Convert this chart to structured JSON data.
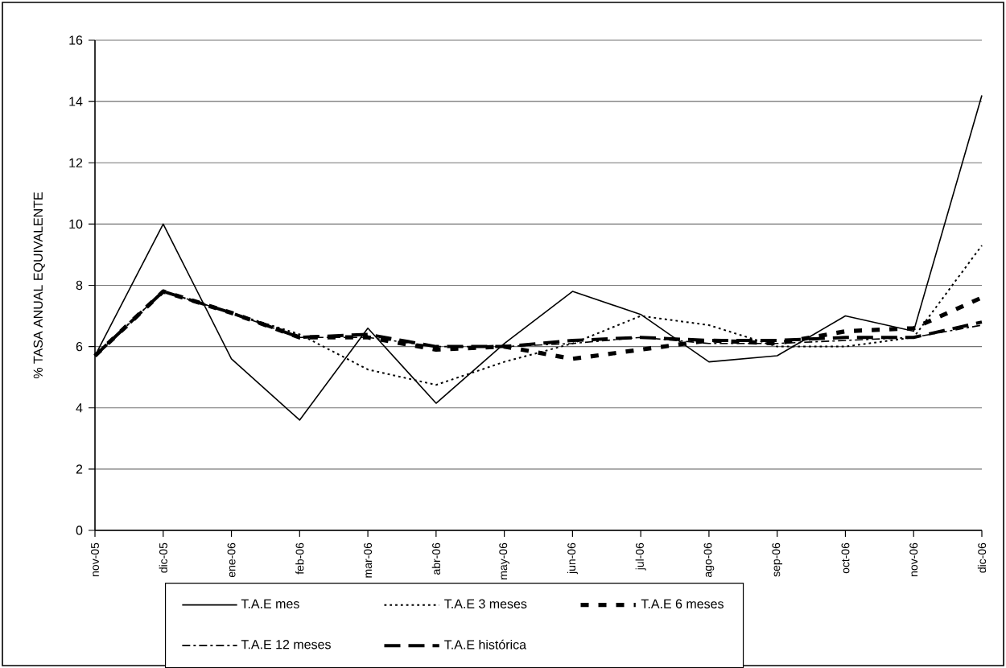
{
  "chart_data": {
    "type": "line",
    "ylabel": "% TASA ANUAL EQUIVALENTE",
    "categories": [
      "nov-05",
      "dic-05",
      "ene-06",
      "feb-06",
      "mar-06",
      "abr-06",
      "may-06",
      "jun-06",
      "jul-06",
      "ago-06",
      "sep-06",
      "oct-06",
      "nov-06",
      "dic-06"
    ],
    "ylim": [
      0,
      16
    ],
    "yticks": [
      0,
      2,
      4,
      6,
      8,
      10,
      12,
      14,
      16
    ],
    "grid": "y",
    "legend": "bottom",
    "marker": "none",
    "series": [
      {
        "name": "T.A.E mes",
        "color": "#000000",
        "line_style": "solid",
        "values": [
          5.7,
          10.0,
          5.6,
          3.6,
          6.6,
          4.15,
          6.1,
          7.8,
          7.05,
          5.5,
          5.7,
          7.0,
          6.5,
          14.2
        ]
      },
      {
        "name": "T.A.E 3 meses",
        "color": "#000000",
        "line_style": "dotted",
        "values": [
          5.7,
          7.8,
          7.1,
          6.4,
          5.25,
          4.75,
          5.5,
          6.1,
          7.0,
          6.7,
          6.0,
          6.0,
          6.3,
          9.3
        ]
      },
      {
        "name": "T.A.E 6 meses",
        "color": "#000000",
        "line_style": "dashed",
        "values": [
          5.7,
          7.8,
          7.1,
          6.3,
          6.3,
          5.9,
          6.0,
          5.6,
          5.9,
          6.2,
          6.1,
          6.5,
          6.6,
          7.6
        ]
      },
      {
        "name": "T.A.E 12 meses",
        "color": "#000000",
        "line_style": "dashdot",
        "values": [
          5.7,
          7.8,
          7.1,
          6.3,
          6.3,
          6.0,
          6.0,
          6.1,
          6.3,
          6.1,
          6.1,
          6.2,
          6.3,
          6.7
        ]
      },
      {
        "name": "T.A.E histórica",
        "color": "#000000",
        "line_style": "longdash",
        "values": [
          5.7,
          7.8,
          7.1,
          6.3,
          6.4,
          6.0,
          6.0,
          6.2,
          6.3,
          6.2,
          6.2,
          6.3,
          6.3,
          6.8
        ]
      }
    ]
  }
}
